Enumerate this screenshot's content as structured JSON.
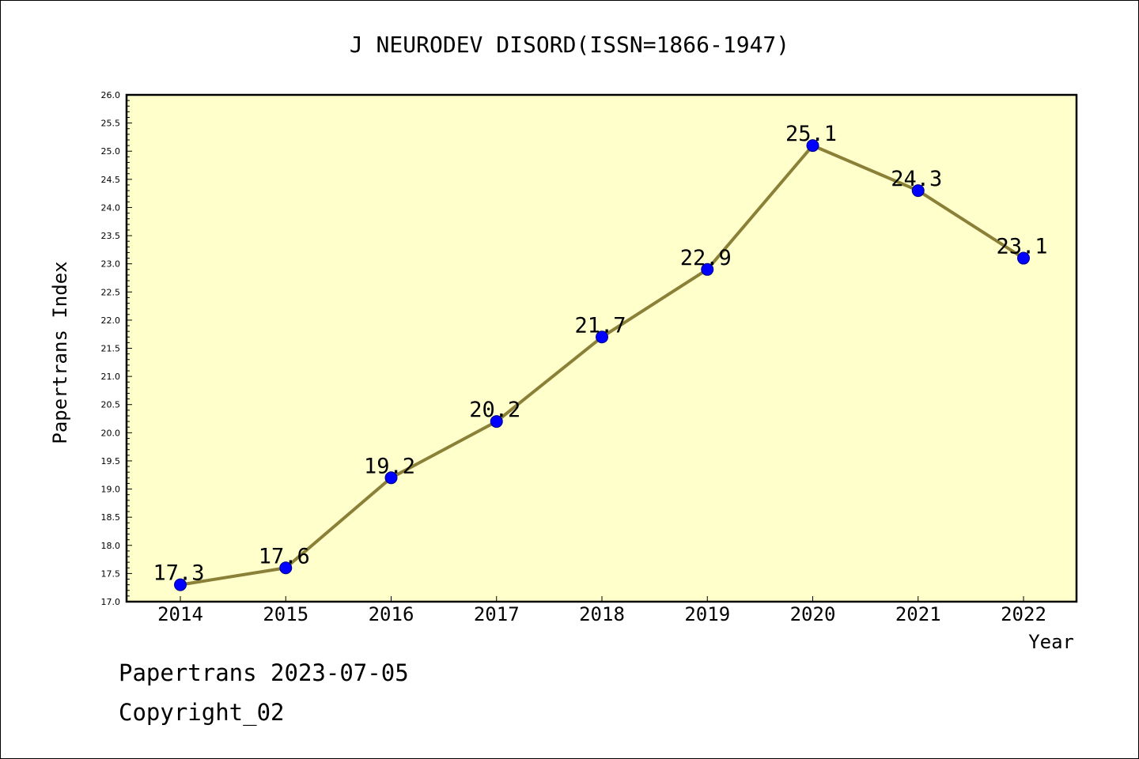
{
  "chart_data": {
    "type": "line",
    "title": "J NEURODEV DISORD(ISSN=1866-1947)",
    "xlabel": "Year",
    "ylabel": "Papertrans Index",
    "categories": [
      "2014",
      "2015",
      "2016",
      "2017",
      "2018",
      "2019",
      "2020",
      "2021",
      "2022"
    ],
    "series": [
      {
        "values": [
          17.3,
          17.6,
          19.2,
          20.2,
          21.7,
          22.9,
          25.1,
          24.3,
          23.1
        ]
      }
    ],
    "data_labels": [
      "17.3",
      "17.6",
      "19.2",
      "20.2",
      "21.7",
      "22.9",
      "25.1",
      "24.3",
      "23.1"
    ],
    "ylim": [
      17.0,
      26.0
    ],
    "yticks": [
      "17.0",
      "17.5",
      "18.0",
      "18.5",
      "19.0",
      "19.5",
      "20.0",
      "20.5",
      "21.0",
      "21.5",
      "22.0",
      "22.5",
      "23.0",
      "23.5",
      "24.0",
      "24.5",
      "25.0",
      "25.5",
      "26.0"
    ],
    "grid": false,
    "colors": {
      "plot_background": "#ffffcc",
      "line": "#8b8038",
      "marker": "#0000ff"
    }
  },
  "footer": {
    "line1": "Papertrans 2023-07-05",
    "line2": "Copyright_02"
  }
}
